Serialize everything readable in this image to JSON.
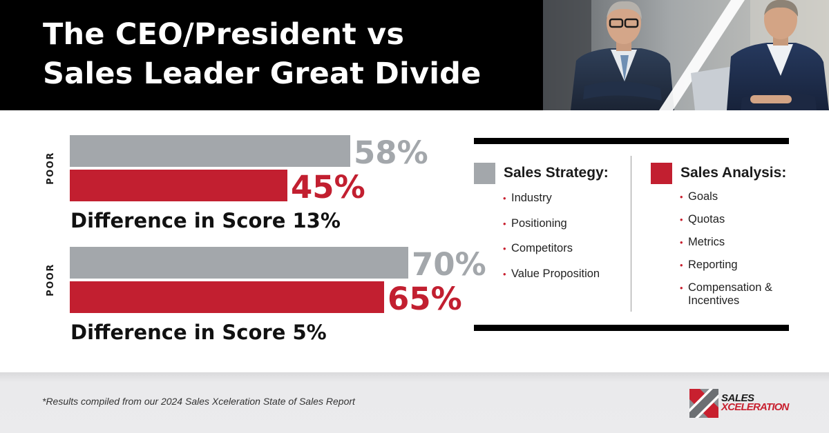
{
  "header": {
    "title_line1": "The CEO/President vs",
    "title_line2": "Sales Leader Great Divide"
  },
  "chart_data": {
    "type": "bar",
    "orientation": "horizontal",
    "xlim": [
      0,
      100
    ],
    "colors": {
      "gray": "#a3a7ab",
      "red": "#c21f30"
    },
    "groups": [
      {
        "axis_label": "POOR",
        "bars": [
          {
            "color": "gray",
            "value": 58,
            "label": "58%"
          },
          {
            "color": "red",
            "value": 45,
            "label": "45%"
          }
        ],
        "difference_label": "Difference in Score 13%"
      },
      {
        "axis_label": "POOR",
        "bars": [
          {
            "color": "gray",
            "value": 70,
            "label": "70%"
          },
          {
            "color": "red",
            "value": 65,
            "label": "65%"
          }
        ],
        "difference_label": "Difference in Score 5%"
      }
    ]
  },
  "legend": {
    "gray": {
      "color": "#a3a7ab",
      "title": "Sales Strategy:",
      "items": [
        "Industry",
        "Positioning",
        "Competitors",
        "Value Proposition"
      ]
    },
    "red": {
      "color": "#c21f30",
      "title": "Sales Analysis:",
      "items": [
        "Goals",
        "Quotas",
        "Metrics",
        "Reporting",
        "Compensation & Incentives"
      ]
    }
  },
  "footer": {
    "footnote": "*Results compiled from our 2024 Sales Xceleration State of Sales Report",
    "logo_line1": "SALES",
    "logo_line2": "XCELERATION"
  }
}
